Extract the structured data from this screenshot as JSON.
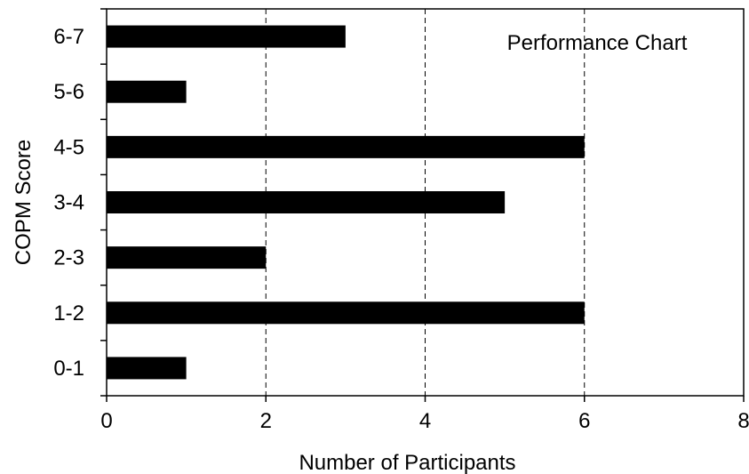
{
  "chart_data": {
    "type": "bar",
    "orientation": "horizontal",
    "title": "Performance Chart",
    "xlabel": "Number of Participants",
    "ylabel": "COPM Score",
    "categories": [
      "0-1",
      "1-2",
      "2-3",
      "3-4",
      "4-5",
      "5-6",
      "6-7"
    ],
    "values": [
      1,
      6,
      2,
      5,
      6,
      1,
      3
    ],
    "xlim": [
      0,
      8
    ],
    "xticks": [
      0,
      2,
      4,
      6,
      8
    ],
    "grid": "vertical dashed",
    "legend": "none",
    "bar_color": "#000000"
  }
}
